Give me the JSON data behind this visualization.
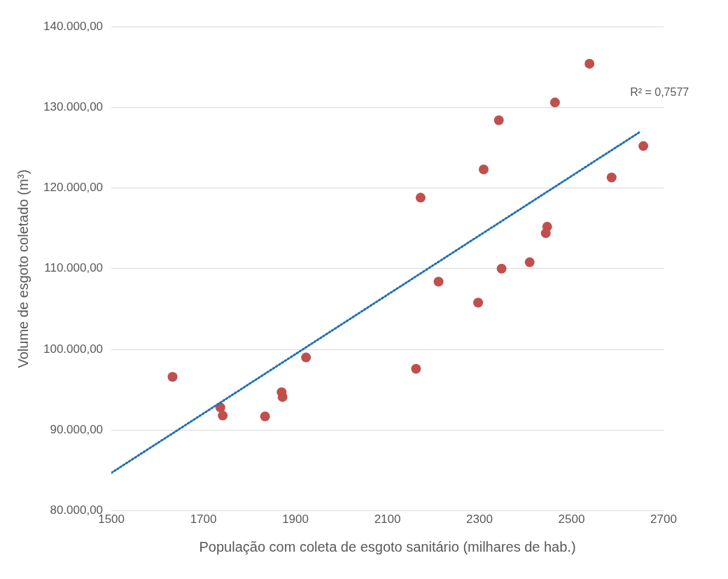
{
  "chart_data": {
    "type": "scatter",
    "xlabel": "População com coleta de esgoto sanitário (milhares de hab.)",
    "ylabel": "Volume de esgoto coletado (m³)",
    "annotations": [
      "R² = 0,7577"
    ],
    "xlim": [
      1500,
      2700
    ],
    "xticks": [
      1500,
      1700,
      1900,
      2100,
      2300,
      2500,
      2700
    ],
    "ylim": [
      80000,
      140000
    ],
    "yticks": [
      {
        "value": 80000,
        "label": "80.000,00"
      },
      {
        "value": 90000,
        "label": "90.000,00"
      },
      {
        "value": 100000,
        "label": "100.000,00"
      },
      {
        "value": 110000,
        "label": "110.000,00"
      },
      {
        "value": 120000,
        "label": "120.000,00"
      },
      {
        "value": 130000,
        "label": "130.000,00"
      },
      {
        "value": 140000,
        "label": "140.000,00"
      }
    ],
    "grid": "y",
    "legend": false,
    "marker": "circle",
    "series": [
      {
        "type": "scatter",
        "color": "#c0504d",
        "x": [
          1633,
          1737,
          1742,
          1834,
          1870,
          1872,
          1923,
          2162,
          2172,
          2211,
          2297,
          2309,
          2342,
          2348,
          2409,
          2444,
          2447,
          2464,
          2539,
          2587,
          2656
        ],
        "values": [
          96600,
          92800,
          91800,
          91700,
          94700,
          94100,
          99000,
          97600,
          118800,
          108400,
          105800,
          122300,
          128400,
          110000,
          110800,
          114400,
          115200,
          130600,
          135400,
          121300,
          125200
        ]
      },
      {
        "type": "line",
        "color": "#1f6fb5",
        "line_style": "dotted",
        "marker": "none",
        "x": [
          1500,
          2650
        ],
        "values": [
          84700,
          127000
        ]
      }
    ]
  }
}
